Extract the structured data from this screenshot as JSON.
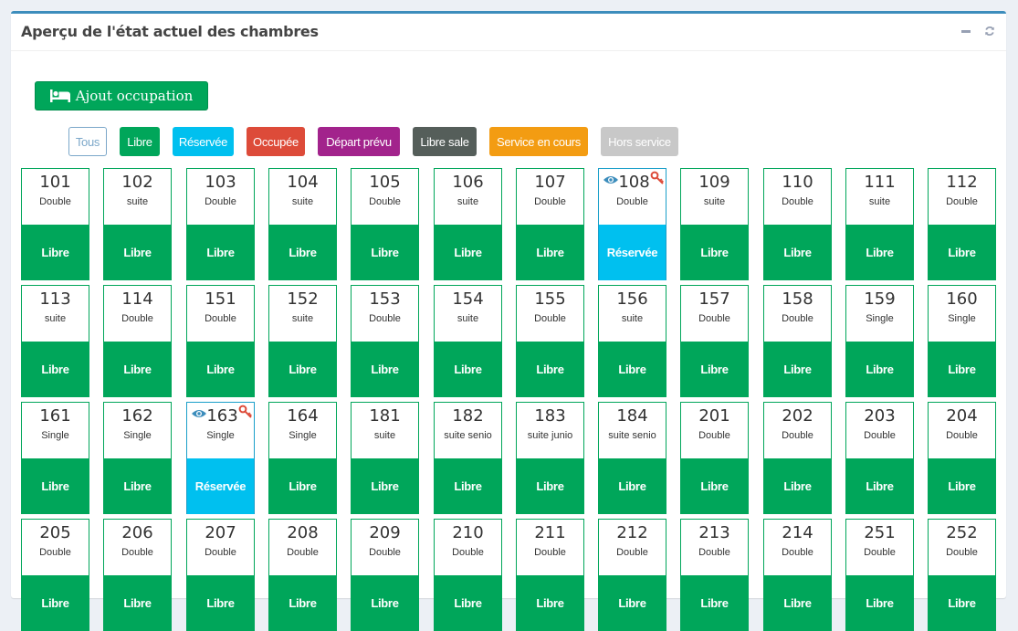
{
  "header": {
    "title": "Aperçu de l'état actuel des chambres"
  },
  "actions": {
    "add_label": "Ajout occupation"
  },
  "colors": {
    "libre": "#00a65a",
    "reservee": "#00c0ef",
    "occupee": "#dd4b39",
    "depart": "#a2238c",
    "libre_sale": "#555e5a",
    "service": "#f39c12",
    "hors_service": "#c8c8c8"
  },
  "filters": [
    {
      "label": "Tous",
      "key": "tous"
    },
    {
      "label": "Libre",
      "key": "libre"
    },
    {
      "label": "Réservée",
      "key": "reservee"
    },
    {
      "label": "Occupée",
      "key": "occupee"
    },
    {
      "label": "Départ prévu",
      "key": "depart"
    },
    {
      "label": "Libre sale",
      "key": "libre_sale"
    },
    {
      "label": "Service en cours",
      "key": "service"
    },
    {
      "label": "Hors service",
      "key": "hors_service"
    }
  ],
  "rooms": [
    {
      "number": "101",
      "type": "Double",
      "status": "Libre"
    },
    {
      "number": "102",
      "type": "suite",
      "status": "Libre"
    },
    {
      "number": "103",
      "type": "Double",
      "status": "Libre"
    },
    {
      "number": "104",
      "type": "suite",
      "status": "Libre"
    },
    {
      "number": "105",
      "type": "Double",
      "status": "Libre"
    },
    {
      "number": "106",
      "type": "suite",
      "status": "Libre"
    },
    {
      "number": "107",
      "type": "Double",
      "status": "Libre"
    },
    {
      "number": "108",
      "type": "Double",
      "status": "Réservée",
      "icons": true
    },
    {
      "number": "109",
      "type": "suite",
      "status": "Libre"
    },
    {
      "number": "110",
      "type": "Double",
      "status": "Libre"
    },
    {
      "number": "111",
      "type": "suite",
      "status": "Libre"
    },
    {
      "number": "112",
      "type": "Double",
      "status": "Libre"
    },
    {
      "number": "113",
      "type": "suite",
      "status": "Libre"
    },
    {
      "number": "114",
      "type": "Double",
      "status": "Libre"
    },
    {
      "number": "151",
      "type": "Double",
      "status": "Libre"
    },
    {
      "number": "152",
      "type": "suite",
      "status": "Libre"
    },
    {
      "number": "153",
      "type": "Double",
      "status": "Libre"
    },
    {
      "number": "154",
      "type": "suite",
      "status": "Libre"
    },
    {
      "number": "155",
      "type": "Double",
      "status": "Libre"
    },
    {
      "number": "156",
      "type": "suite",
      "status": "Libre"
    },
    {
      "number": "157",
      "type": "Double",
      "status": "Libre"
    },
    {
      "number": "158",
      "type": "Double",
      "status": "Libre"
    },
    {
      "number": "159",
      "type": "Single",
      "status": "Libre"
    },
    {
      "number": "160",
      "type": "Single",
      "status": "Libre"
    },
    {
      "number": "161",
      "type": "Single",
      "status": "Libre"
    },
    {
      "number": "162",
      "type": "Single",
      "status": "Libre"
    },
    {
      "number": "163",
      "type": "Single",
      "status": "Réservée",
      "icons": true
    },
    {
      "number": "164",
      "type": "Single",
      "status": "Libre"
    },
    {
      "number": "181",
      "type": "suite",
      "status": "Libre"
    },
    {
      "number": "182",
      "type": "suite senio",
      "status": "Libre"
    },
    {
      "number": "183",
      "type": "suite junio",
      "status": "Libre"
    },
    {
      "number": "184",
      "type": "suite senio",
      "status": "Libre"
    },
    {
      "number": "201",
      "type": "Double",
      "status": "Libre"
    },
    {
      "number": "202",
      "type": "Double",
      "status": "Libre"
    },
    {
      "number": "203",
      "type": "Double",
      "status": "Libre"
    },
    {
      "number": "204",
      "type": "Double",
      "status": "Libre"
    },
    {
      "number": "205",
      "type": "Double",
      "status": "Libre"
    },
    {
      "number": "206",
      "type": "Double",
      "status": "Libre"
    },
    {
      "number": "207",
      "type": "Double",
      "status": "Libre"
    },
    {
      "number": "208",
      "type": "Double",
      "status": "Libre"
    },
    {
      "number": "209",
      "type": "Double",
      "status": "Libre"
    },
    {
      "number": "210",
      "type": "Double",
      "status": "Libre"
    },
    {
      "number": "211",
      "type": "Double",
      "status": "Libre"
    },
    {
      "number": "212",
      "type": "Double",
      "status": "Libre"
    },
    {
      "number": "213",
      "type": "Double",
      "status": "Libre"
    },
    {
      "number": "214",
      "type": "Double",
      "status": "Libre"
    },
    {
      "number": "251",
      "type": "Double",
      "status": "Libre"
    },
    {
      "number": "252",
      "type": "Double",
      "status": "Libre"
    }
  ]
}
